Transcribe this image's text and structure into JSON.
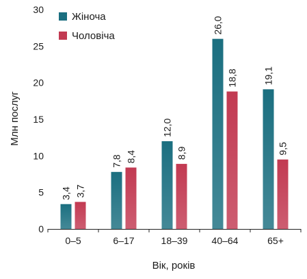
{
  "chart_data": {
    "type": "bar",
    "title": "",
    "xlabel": "Вік, років",
    "ylabel": "Млн послуг",
    "ylim": [
      0,
      30
    ],
    "yticks": [
      0,
      5,
      10,
      15,
      20,
      25,
      30
    ],
    "categories": [
      "0–5",
      "6–17",
      "18–39",
      "40–64",
      "65+"
    ],
    "series": [
      {
        "name": "Жіноча",
        "color": "#1b6f80",
        "values": [
          3.4,
          7.8,
          12.0,
          26.0,
          19.1
        ],
        "labels": [
          "3,4",
          "7,8",
          "12,0",
          "26,0",
          "19,1"
        ]
      },
      {
        "name": "Чоловіча",
        "color": "#c23a52",
        "values": [
          3.7,
          8.4,
          8.9,
          18.8,
          9.5
        ],
        "labels": [
          "3,7",
          "8,4",
          "8,9",
          "18,8",
          "9,5"
        ]
      }
    ],
    "legend": "top-left",
    "grid": false
  }
}
